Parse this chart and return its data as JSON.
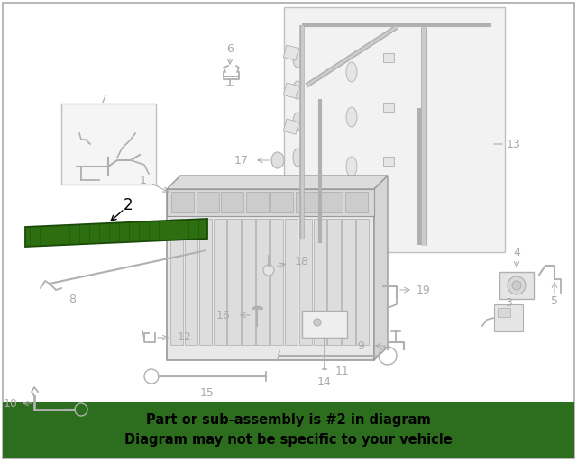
{
  "bg_color": "#ffffff",
  "part_color": "#b0b0b0",
  "label_color": "#aaaaaa",
  "text_color": "#000000",
  "highlight_part_color": "#2d6e10",
  "highlight_edge_color": "#1a4a08",
  "banner_bg": "#2d6e1e",
  "banner_text_color": "#000000",
  "banner_line1": "Part or sub-assembly is #2 in diagram",
  "banner_line2": "Diagram may not be specific to your vehicle",
  "banner_fontsize": 10.5,
  "fig_width": 6.4,
  "fig_height": 5.12,
  "dpi": 100
}
